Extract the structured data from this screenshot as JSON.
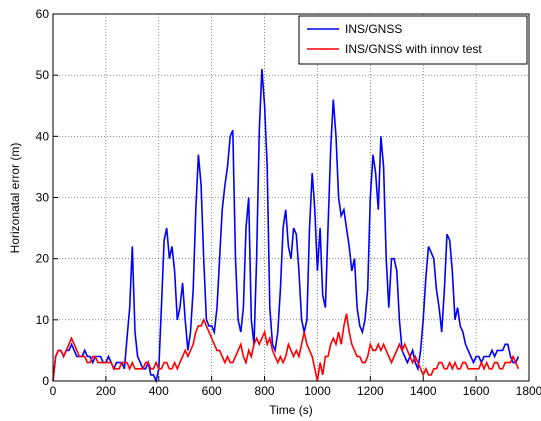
{
  "chart_data": {
    "type": "line",
    "xlabel": "Time (s)",
    "ylabel": "Horizonatal error (m)",
    "x": [
      0,
      10,
      20,
      30,
      40,
      50,
      60,
      70,
      80,
      90,
      100,
      110,
      120,
      130,
      140,
      150,
      160,
      170,
      180,
      190,
      200,
      210,
      220,
      230,
      240,
      250,
      260,
      270,
      280,
      290,
      300,
      310,
      320,
      330,
      340,
      350,
      360,
      370,
      380,
      390,
      400,
      410,
      420,
      430,
      440,
      450,
      460,
      470,
      480,
      490,
      500,
      510,
      520,
      530,
      540,
      550,
      560,
      570,
      580,
      590,
      600,
      610,
      620,
      630,
      640,
      650,
      660,
      670,
      680,
      690,
      700,
      710,
      720,
      730,
      740,
      750,
      760,
      770,
      780,
      790,
      800,
      810,
      820,
      830,
      840,
      850,
      860,
      870,
      880,
      890,
      900,
      910,
      920,
      930,
      940,
      950,
      960,
      970,
      980,
      990,
      1000,
      1010,
      1020,
      1030,
      1040,
      1050,
      1060,
      1070,
      1080,
      1090,
      1100,
      1110,
      1120,
      1130,
      1140,
      1150,
      1160,
      1170,
      1180,
      1190,
      1200,
      1210,
      1220,
      1230,
      1240,
      1250,
      1260,
      1270,
      1280,
      1290,
      1300,
      1310,
      1320,
      1330,
      1340,
      1350,
      1360,
      1370,
      1380,
      1390,
      1400,
      1410,
      1420,
      1430,
      1440,
      1450,
      1460,
      1470,
      1480,
      1490,
      1500,
      1510,
      1520,
      1530,
      1540,
      1550,
      1560,
      1570,
      1580,
      1590,
      1600,
      1610,
      1620,
      1630,
      1640,
      1650,
      1660,
      1670,
      1680,
      1690,
      1700,
      1710,
      1720,
      1730,
      1740,
      1750,
      1760
    ],
    "series": [
      {
        "name": "INS/GNSS",
        "color": "#0000ff",
        "values": [
          0,
          4,
          5,
          5,
          4,
          5,
          5,
          6,
          5,
          4,
          4,
          4,
          5,
          4,
          4,
          3,
          4,
          4,
          4,
          3,
          3,
          4,
          3,
          2,
          3,
          3,
          3,
          2,
          7,
          12,
          22,
          8,
          4,
          3,
          2,
          2,
          3,
          1,
          1,
          0,
          2,
          12,
          23,
          25,
          20,
          22,
          18,
          10,
          12,
          16,
          10,
          5,
          8,
          15,
          28,
          37,
          32,
          20,
          10,
          9,
          9,
          8,
          12,
          20,
          28,
          32,
          35,
          40,
          41,
          20,
          10,
          8,
          12,
          25,
          30,
          10,
          6,
          20,
          41,
          51,
          45,
          35,
          12,
          6,
          5,
          8,
          15,
          25,
          28,
          22,
          20,
          25,
          24,
          18,
          10,
          8,
          10,
          25,
          34,
          28,
          18,
          25,
          14,
          12,
          25,
          38,
          46,
          40,
          30,
          27,
          28,
          25,
          22,
          18,
          20,
          12,
          9,
          8,
          10,
          15,
          30,
          37,
          34,
          28,
          40,
          35,
          20,
          12,
          20,
          20,
          18,
          10,
          5,
          4,
          3,
          4,
          5,
          3,
          2,
          5,
          10,
          17,
          22,
          21,
          20,
          15,
          12,
          8,
          15,
          24,
          23,
          18,
          10,
          12,
          9,
          8,
          6,
          5,
          4,
          3,
          4,
          4,
          3,
          4,
          4,
          4,
          5,
          4,
          5,
          5,
          5,
          6,
          6,
          4,
          3,
          3,
          4
        ]
      },
      {
        "name": "INS/GNSS with innov test",
        "color": "#ff0000",
        "values": [
          0,
          4,
          5,
          5,
          4,
          5,
          6,
          7,
          6,
          5,
          4,
          4,
          4,
          3,
          3,
          4,
          4,
          3,
          3,
          3,
          3,
          3,
          3,
          2,
          2,
          2,
          3,
          3,
          3,
          2,
          3,
          2,
          2,
          2,
          2,
          3,
          3,
          2,
          2,
          3,
          2,
          2,
          3,
          3,
          2,
          2,
          3,
          2,
          3,
          4,
          5,
          4,
          5,
          6,
          8,
          9,
          9,
          10,
          9,
          8,
          7,
          6,
          5,
          5,
          4,
          3,
          4,
          3,
          3,
          4,
          5,
          6,
          4,
          3,
          5,
          4,
          6,
          7,
          6,
          7,
          8,
          6,
          7,
          5,
          4,
          3,
          4,
          3,
          4,
          6,
          5,
          4,
          5,
          4,
          6,
          8,
          6,
          5,
          4,
          2,
          0,
          3,
          1,
          4,
          4,
          6,
          7,
          6,
          8,
          6,
          9,
          11,
          8,
          6,
          5,
          4,
          4,
          3,
          3,
          4,
          6,
          5,
          5,
          6,
          5,
          6,
          5,
          4,
          3,
          4,
          5,
          6,
          5,
          6,
          5,
          4,
          3,
          4,
          3,
          2,
          1,
          2,
          1,
          1,
          2,
          2,
          3,
          3,
          2,
          2,
          3,
          2,
          3,
          2,
          2,
          3,
          3,
          2,
          2,
          2,
          2,
          2,
          3,
          2,
          3,
          2,
          2,
          3,
          3,
          2,
          2,
          3,
          3,
          3,
          4,
          3,
          2
        ]
      }
    ],
    "xlim": [
      0,
      1800
    ],
    "xticks": [
      0,
      200,
      400,
      600,
      800,
      1000,
      1200,
      1400,
      1600,
      1800
    ],
    "ylim": [
      0,
      60
    ],
    "yticks": [
      0,
      10,
      20,
      30,
      40,
      50,
      60
    ],
    "grid": true,
    "legend": "upper right"
  }
}
